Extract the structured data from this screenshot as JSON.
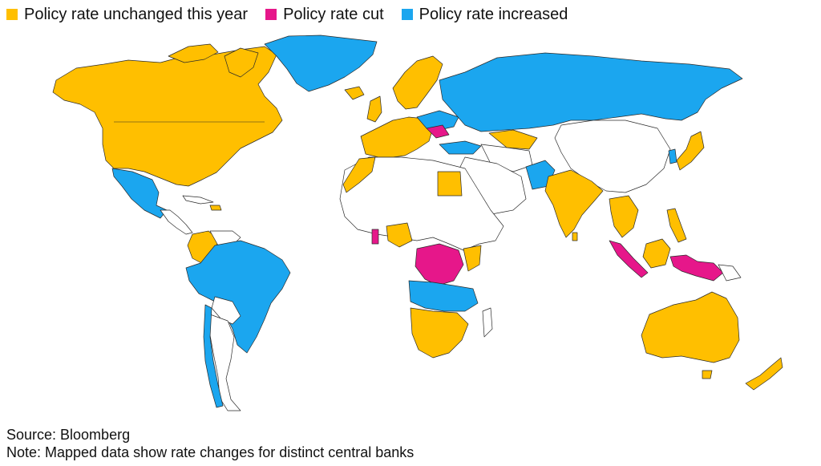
{
  "legend": {
    "items": [
      {
        "label": "Policy rate unchanged this year",
        "color": "#ffbf00"
      },
      {
        "label": "Policy rate cut",
        "color": "#e6178a"
      },
      {
        "label": "Policy rate increased",
        "color": "#1ba6ef"
      }
    ]
  },
  "colors": {
    "unchanged": "#ffbf00",
    "cut": "#e6178a",
    "increased": "#1ba6ef",
    "no_data": "#ffffff",
    "outline": "#2a2a2a"
  },
  "footer": {
    "source": "Source: Bloomberg",
    "note": "Note: Mapped data show rate changes for distinct central banks"
  }
}
